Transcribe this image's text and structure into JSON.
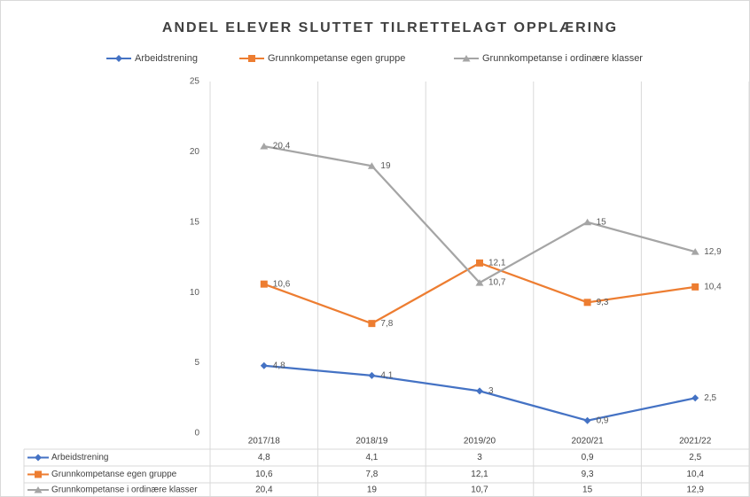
{
  "chart_data": {
    "type": "line",
    "title": "ANDEL ELEVER SLUTTET TILRETTELAGT OPPLÆRING",
    "categories": [
      "2017/18",
      "2018/19",
      "2019/20",
      "2020/21",
      "2021/22"
    ],
    "series": [
      {
        "name": "Arbeidstrening",
        "color": "#4472c4",
        "marker": "diamond",
        "values": [
          4.8,
          4.1,
          3,
          0.9,
          2.5
        ],
        "value_labels": [
          "4,8",
          "4,1",
          "3",
          "0,9",
          "2,5"
        ]
      },
      {
        "name": "Grunnkompetanse egen gruppe",
        "color": "#ed7d31",
        "marker": "square",
        "values": [
          10.6,
          7.8,
          12.1,
          9.3,
          10.4
        ],
        "value_labels": [
          "10,6",
          "7,8",
          "12,1",
          "9,3",
          "10,4"
        ]
      },
      {
        "name": "Grunnkompetanse i ordinære klasser",
        "color": "#a5a5a5",
        "marker": "triangle",
        "values": [
          20.4,
          19,
          10.7,
          15,
          12.9
        ],
        "value_labels": [
          "20,4",
          "19",
          "10,7",
          "15",
          "12,9"
        ]
      }
    ],
    "ylim": [
      0,
      25
    ],
    "yticks": [
      0,
      5,
      10,
      15,
      20,
      25
    ],
    "legend": "top",
    "data_table": true
  }
}
